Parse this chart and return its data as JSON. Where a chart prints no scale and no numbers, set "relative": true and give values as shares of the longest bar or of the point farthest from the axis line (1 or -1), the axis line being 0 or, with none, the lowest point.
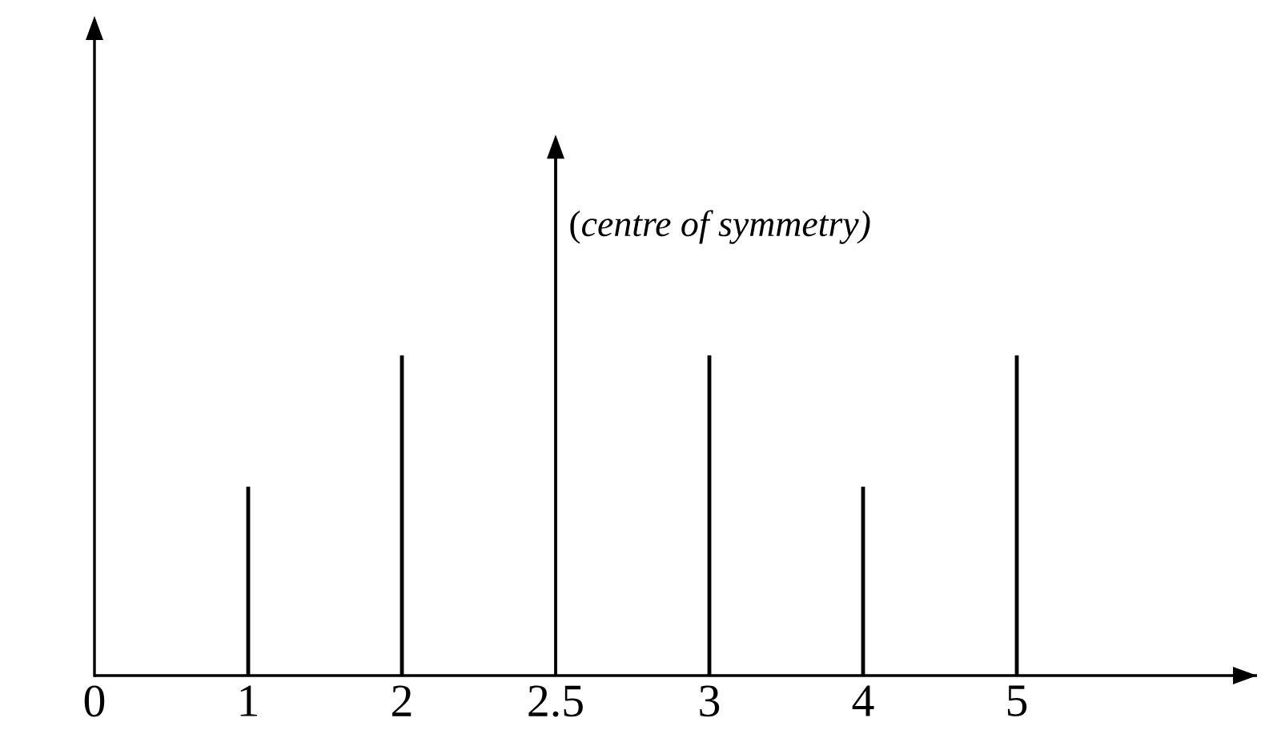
{
  "chart_data": {
    "type": "bar",
    "relative": true,
    "categories": [
      "0",
      "1",
      "2",
      "2.5",
      "3",
      "4",
      "5"
    ],
    "values": [
      null,
      0.59,
      1,
      null,
      1,
      0.59,
      1
    ],
    "color": "#000000",
    "ref_lines": [
      {
        "axis": "x",
        "value": "2.5",
        "label": "(*centre of symmetry)*",
        "color": "#000000"
      }
    ]
  }
}
